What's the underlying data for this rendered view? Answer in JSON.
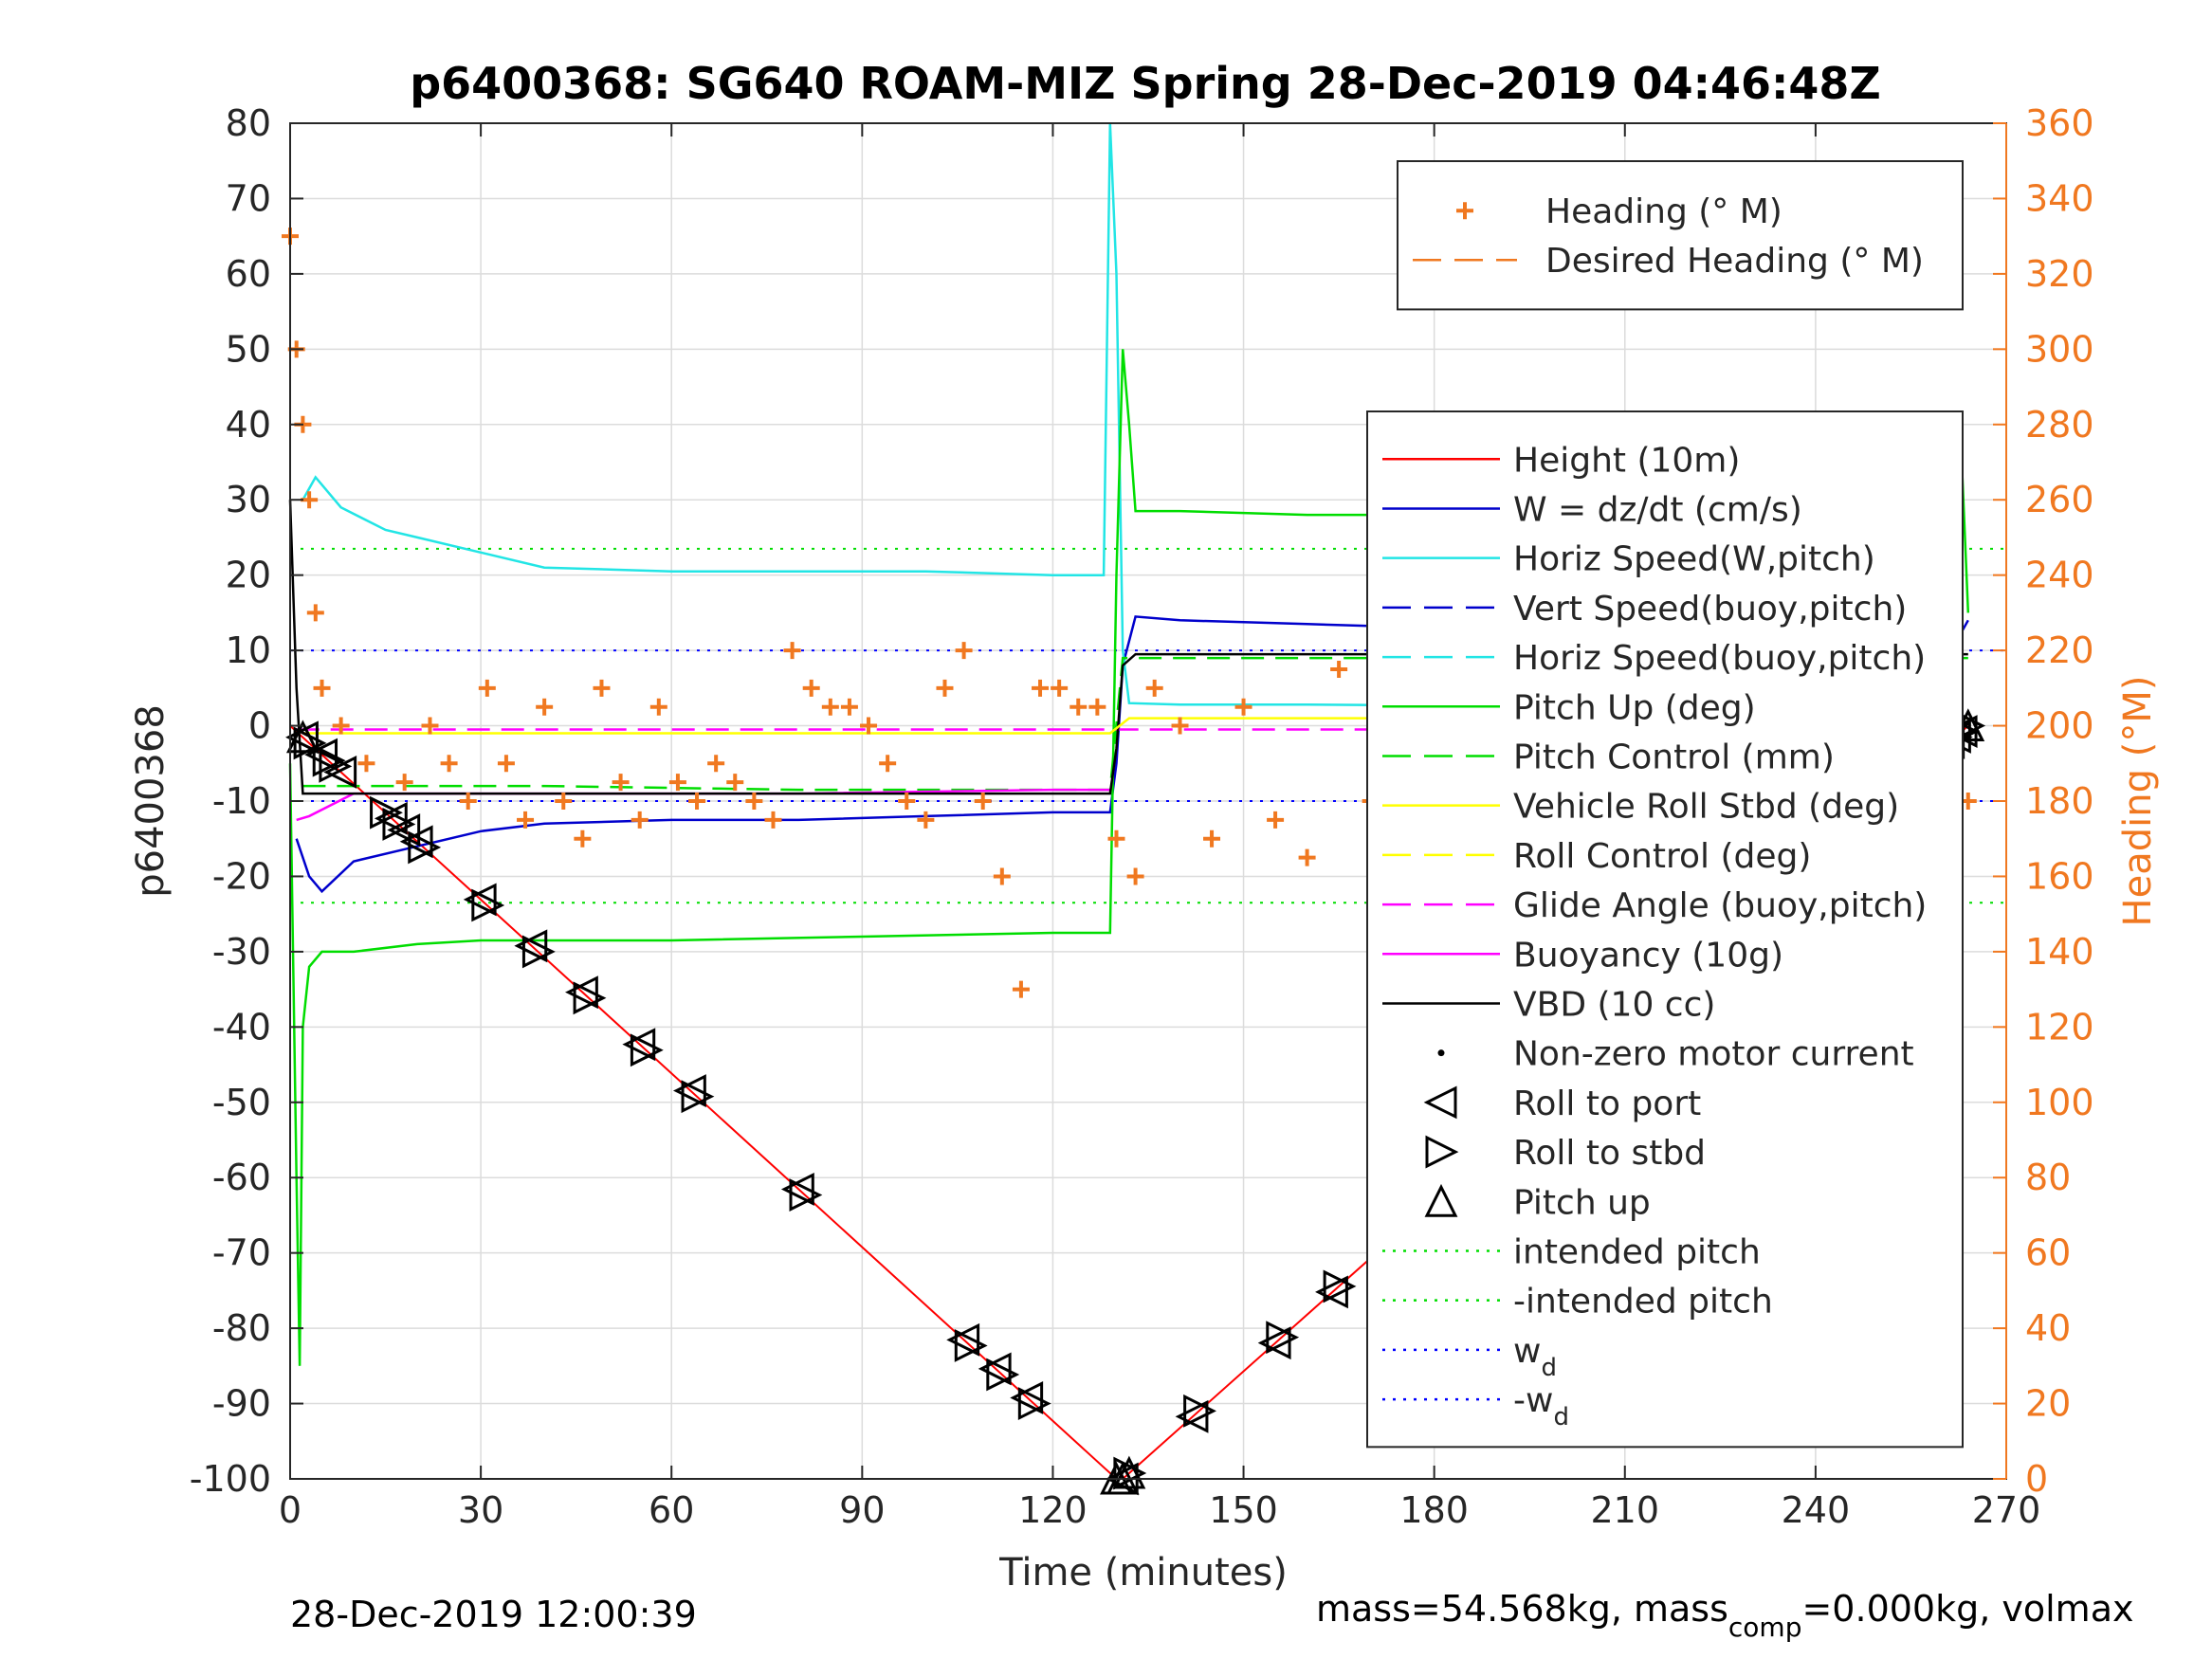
{
  "chart_data": {
    "type": "line",
    "title": "p6400368: SG640 ROAM-MIZ Spring 28-Dec-2019 04:46:48Z",
    "xlabel": "Time (minutes)",
    "ylabel_left": "p6400368",
    "ylabel_right": "Heading (°M)",
    "xlim": [
      0,
      270
    ],
    "ylim_left": [
      -100,
      80
    ],
    "ylim_right": [
      0,
      360
    ],
    "xticks": [
      "0",
      "30",
      "60",
      "90",
      "120",
      "150",
      "180",
      "210",
      "240",
      "270"
    ],
    "yticks_left": [
      "80",
      "70",
      "60",
      "50",
      "40",
      "30",
      "20",
      "10",
      "0",
      "-10",
      "-20",
      "-30",
      "-40",
      "-50",
      "-60",
      "-70",
      "-80",
      "-90",
      "-100"
    ],
    "yticks_right": [
      "360",
      "340",
      "320",
      "300",
      "280",
      "260",
      "240",
      "220",
      "200",
      "180",
      "160",
      "140",
      "120",
      "100",
      "80",
      "60",
      "40",
      "20",
      "0"
    ],
    "grid": true,
    "legend_top": {
      "placement": "top-right",
      "entries": [
        {
          "label": "Heading (° M)",
          "color": "#f07820",
          "style": "plus"
        },
        {
          "label": "Desired Heading (° M)",
          "color": "#f07820",
          "style": "dashed"
        }
      ]
    },
    "legend_main": {
      "placement": "right",
      "entries": [
        {
          "label": "Height (10m)",
          "color": "#ff0000",
          "style": "solid"
        },
        {
          "label": "W = dz/dt (cm/s)",
          "color": "#0000cc",
          "style": "solid"
        },
        {
          "label": "Horiz Speed(W,pitch)",
          "color": "#22e5e5",
          "style": "solid"
        },
        {
          "label": "Vert Speed(buoy,pitch)",
          "color": "#0000cc",
          "style": "dashed"
        },
        {
          "label": "Horiz Speed(buoy,pitch)",
          "color": "#22e5e5",
          "style": "dashed"
        },
        {
          "label": "Pitch Up (deg)",
          "color": "#00dd00",
          "style": "solid"
        },
        {
          "label": "Pitch Control (mm)",
          "color": "#00dd00",
          "style": "dashed"
        },
        {
          "label": "Vehicle Roll Stbd (deg)",
          "color": "#ffff00",
          "style": "solid"
        },
        {
          "label": "Roll Control (deg)",
          "color": "#ffff00",
          "style": "dashed"
        },
        {
          "label": "Glide Angle (buoy,pitch)",
          "color": "#ff00ff",
          "style": "dashed"
        },
        {
          "label": "Buoyancy (10g)",
          "color": "#ff00ff",
          "style": "solid"
        },
        {
          "label": "VBD (10 cc)",
          "color": "#000000",
          "style": "solid"
        },
        {
          "label": "Non-zero motor current",
          "color": "#000000",
          "style": "dot"
        },
        {
          "label": "Roll to port",
          "color": "#000000",
          "style": "triangle-left"
        },
        {
          "label": "Roll to stbd",
          "color": "#000000",
          "style": "triangle-right"
        },
        {
          "label": "Pitch up",
          "color": "#000000",
          "style": "triangle-up"
        },
        {
          "label": "intended pitch",
          "color": "#00dd00",
          "style": "dotted"
        },
        {
          "label": "-intended pitch",
          "color": "#00dd00",
          "style": "dotted"
        },
        {
          "label": "w",
          "sub": "d",
          "color": "#0000ff",
          "style": "dotted"
        },
        {
          "label": "-w",
          "sub": "d",
          "color": "#0000ff",
          "style": "dotted"
        }
      ]
    },
    "reference_lines": {
      "intended_pitch": 23.5,
      "neg_intended_pitch": -23.5,
      "wd": 10,
      "neg_wd": -10
    },
    "series": [
      {
        "name": "Height (10m)",
        "color": "#ff0000",
        "x": [
          0,
          130,
          131,
          264
        ],
        "y": [
          0,
          -100,
          -100,
          0
        ]
      },
      {
        "name": "W = dz/dt (cm/s)",
        "color": "#0000cc",
        "x": [
          1,
          3,
          5,
          10,
          20,
          30,
          40,
          60,
          80,
          100,
          120,
          129,
          130,
          131,
          133,
          140,
          160,
          180,
          200,
          220,
          240,
          255,
          262,
          264
        ],
        "y": [
          -15,
          -20,
          -22,
          -18,
          -16,
          -14,
          -13,
          -12.5,
          -12.5,
          -12,
          -11.5,
          -11.5,
          -5,
          8,
          14.5,
          14,
          13.5,
          13,
          12.5,
          12.5,
          12.5,
          13,
          11,
          14
        ]
      },
      {
        "name": "Horiz Speed(W,pitch)",
        "color": "#22e5e5",
        "x": [
          2,
          4,
          8,
          15,
          20,
          30,
          40,
          60,
          80,
          100,
          120,
          128,
          129,
          130,
          131,
          132,
          140,
          160,
          180,
          200,
          220,
          240,
          262
        ],
        "y": [
          30,
          33,
          29,
          26,
          25,
          23,
          21,
          20.5,
          20.5,
          20.5,
          20,
          20,
          80,
          60,
          10,
          3,
          2.8,
          2.8,
          2.7,
          2.7,
          2.7,
          2.7,
          2.7
        ]
      },
      {
        "name": "Pitch Up (deg)",
        "color": "#00dd00",
        "x": [
          0,
          1,
          1.5,
          2,
          3,
          5,
          10,
          20,
          30,
          60,
          90,
          120,
          129,
          130,
          131,
          132,
          133,
          140,
          160,
          180,
          200,
          220,
          240,
          255,
          262,
          263,
          264
        ],
        "y": [
          -5,
          -60,
          -85,
          -40,
          -32,
          -30,
          -30,
          -29,
          -28.5,
          -28.5,
          -28,
          -27.5,
          -27.5,
          20,
          50,
          40,
          28.5,
          28.5,
          28,
          28,
          27.5,
          27,
          27,
          26.5,
          28,
          35,
          15
        ]
      },
      {
        "name": "Pitch Control (mm)",
        "color": "#00dd00",
        "x": [
          2,
          10,
          40,
          80,
          120,
          129,
          131,
          150,
          200,
          264
        ],
        "y": [
          -8,
          -8,
          -8,
          -8.5,
          -8.5,
          -8.5,
          9,
          9,
          9,
          9
        ]
      },
      {
        "name": "Buoyancy (10g)",
        "color": "#ff00ff",
        "x": [
          1,
          3,
          10,
          40,
          80,
          120,
          129
        ],
        "y": [
          -12.5,
          -12,
          -9,
          -9,
          -9,
          -8.5,
          -8.5
        ]
      },
      {
        "name": "Glide Angle (buoy,pitch)",
        "color": "#ff00ff",
        "x": [
          1,
          264
        ],
        "y": [
          -0.5,
          -0.5
        ]
      },
      {
        "name": "VBD (10 cc)",
        "color": "#000000",
        "x": [
          0,
          1,
          2,
          10,
          40,
          80,
          120,
          129,
          130,
          131,
          133,
          264
        ],
        "y": [
          30,
          5,
          -9,
          -9,
          -9,
          -9,
          -9,
          -9,
          -3,
          8,
          9.5,
          9.5
        ]
      },
      {
        "name": "Vehicle Roll Stbd (deg)",
        "color": "#ffff00",
        "x": [
          2,
          30,
          60,
          90,
          120,
          129,
          132,
          180,
          220,
          264
        ],
        "y": [
          -1,
          -1,
          -1,
          -1,
          -1,
          -1,
          1,
          1,
          1,
          1
        ]
      },
      {
        "name": "Heading (° M)",
        "color": "#f07820",
        "axis": "right",
        "x": [
          0,
          1,
          2,
          3,
          4,
          5,
          8,
          12,
          18,
          22,
          25,
          28,
          31,
          34,
          37,
          40,
          43,
          46,
          49,
          52,
          55,
          58,
          61,
          64,
          67,
          70,
          73,
          76,
          79,
          82,
          85,
          88,
          91,
          94,
          97,
          100,
          103,
          106,
          109,
          112,
          115,
          118,
          121,
          124,
          127,
          130,
          133,
          136,
          140,
          145,
          150,
          155,
          160,
          165,
          170,
          175,
          180,
          185,
          190,
          195,
          200,
          205,
          210,
          215,
          220,
          225,
          230,
          235,
          240,
          245,
          250,
          255,
          260,
          264
        ],
        "y": [
          330,
          300,
          280,
          260,
          230,
          210,
          200,
          190,
          185,
          200,
          190,
          180,
          210,
          190,
          175,
          205,
          180,
          170,
          210,
          185,
          175,
          205,
          185,
          180,
          190,
          185,
          180,
          175,
          220,
          210,
          205,
          205,
          200,
          190,
          180,
          175,
          210,
          220,
          180,
          160,
          130,
          210,
          210,
          205,
          205,
          170,
          160,
          210,
          200,
          170,
          205,
          175,
          165,
          215,
          180,
          165,
          215,
          200,
          180,
          220,
          180,
          165,
          215,
          210,
          190,
          210,
          175,
          160,
          200,
          210,
          170,
          150,
          200,
          180
        ]
      }
    ],
    "markers": {
      "roll_to_port_x": [
        2,
        5,
        8,
        16,
        18,
        20,
        30,
        38,
        46,
        55,
        63,
        80,
        106,
        111,
        116,
        131,
        142,
        155,
        164,
        173,
        186,
        196,
        210,
        220,
        227,
        231,
        234,
        236,
        238,
        240,
        243,
        246,
        249,
        252,
        255,
        257,
        259,
        261,
        262,
        263
      ],
      "roll_to_stbd_x": [
        3,
        6,
        7,
        15,
        17,
        21,
        31,
        39,
        47,
        56,
        64,
        81,
        107,
        112,
        117,
        132,
        143,
        156,
        165,
        174,
        187,
        197,
        211,
        221,
        228,
        232,
        235,
        237,
        239,
        241,
        244,
        247,
        250,
        253,
        256,
        258,
        260,
        262,
        263,
        264
      ],
      "pitch_up_x": [
        2,
        130,
        131,
        132,
        264
      ]
    }
  },
  "footer": {
    "timestamp": "28-Dec-2019 12:00:39",
    "mass_text": "mass=54.568kg, mass",
    "mass_sub": "comp",
    "mass_rest": "=0.000kg, volmax"
  }
}
